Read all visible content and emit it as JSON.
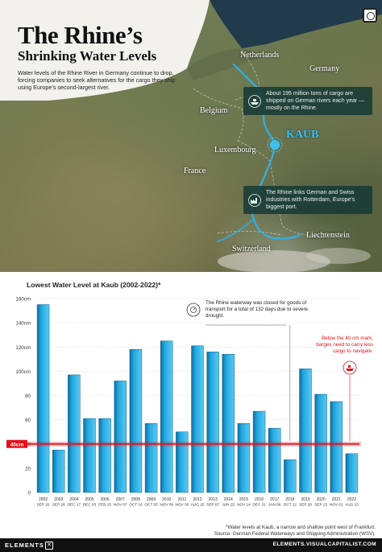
{
  "header": {
    "title": "The Rhine’s",
    "subtitle": "Shrinking Water Levels",
    "description": "Water levels of the Rhine River in Germany continue to drop, forcing companies to seek alternatives for the cargo they ship using Europe’s second-largest river."
  },
  "map": {
    "countries": {
      "netherlands": "Netherlands",
      "germany": "Germany",
      "belgium": "Belgium",
      "luxembourg": "Luxembourg",
      "france": "France",
      "liechtenstein": "Liechtenstein",
      "switzerland": "Switzerland"
    },
    "kaub_label": "KAUB",
    "info_cargo": "About 195 million tons of cargo are shipped on German rivers each year — mostly on the Rhine.",
    "info_link": "The Rhine links German and Swiss industries with Rotterdam, Europe’s biggest port.",
    "colors": {
      "river": "#2fb0e6",
      "kaub": "#3ec1ee",
      "info_bg": "#183a36"
    }
  },
  "chart_title": "Lowest Water Level at Kaub (2002-2022)*",
  "chart_data": {
    "type": "bar",
    "title": "Lowest Water Level at Kaub (2002-2022)*",
    "ylim": [
      0,
      160
    ],
    "y_ticks": [
      0,
      20,
      40,
      60,
      80,
      100,
      120,
      140,
      160
    ],
    "y_tick_labels": [
      "0",
      "20",
      "40",
      "60",
      "80",
      "100cm",
      "120cm",
      "140cm",
      "160cm"
    ],
    "categories": [
      "2002",
      "2003",
      "2004",
      "2005",
      "2006",
      "2007",
      "2008",
      "2009",
      "2010",
      "2011",
      "2012",
      "2013",
      "2014",
      "2015",
      "2016",
      "2017",
      "2018",
      "2019",
      "2020",
      "2021",
      "2022"
    ],
    "dates": [
      "SEP 20",
      "SEP 28",
      "DEC 17",
      "DEC 03",
      "FEB 15",
      "NOV 07",
      "OCT 16",
      "OCT 05",
      "NOV 06",
      "NOV 30",
      "AUG 15",
      "SEP 07",
      "JUN 25",
      "NOV 14",
      "DEC 31",
      "JAN 09",
      "OCT 22",
      "SEP 28",
      "SEP 23",
      "NOV 01",
      "AUG 15"
    ],
    "values": [
      155,
      35,
      97,
      61,
      61,
      92,
      118,
      57,
      125,
      50,
      121,
      116,
      114,
      57,
      67,
      53,
      27,
      102,
      81,
      75,
      32
    ],
    "threshold": 40,
    "threshold_label": "40cm",
    "colors": {
      "bar": "#23a9e1",
      "bar_dark": "#0b6fa3",
      "threshold": "#e3111b"
    },
    "annotations": {
      "closure": "The Rhine waterway was closed for goods of transport for a total of 132 days due to severe drought.",
      "threshold_note": "Below the 40 cm mark, barges need to carry less cargo to navigate."
    }
  },
  "footnote": {
    "line1": "*Water levels at Kaub, a narrow and shallow point west of Frankfurt.",
    "line2": "Source: German Federal Waterways and Shipping Administration (WSV)."
  },
  "footer": {
    "brand": "ELEMENTS",
    "site": "ELEMENTS.VISUALCAPITALIST.COM"
  }
}
